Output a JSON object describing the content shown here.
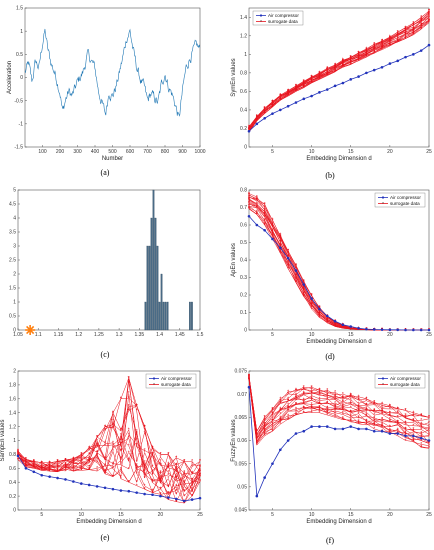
{
  "figure": {
    "title": ""
  },
  "colors": {
    "surrogate": "#e8141e",
    "original": "#2233bb",
    "signal": "#1f77b4",
    "hist": "#4a6b86",
    "star": "#ff7f0e"
  },
  "chart_data": [
    {
      "id": "a",
      "panel_label": "(a)",
      "type": "line",
      "xlabel": "Number",
      "ylabel": "Acceleration",
      "xlim": [
        0,
        1000
      ],
      "ylim": [
        -1.5,
        1.5
      ],
      "xticks": [
        100,
        200,
        300,
        400,
        500,
        600,
        700,
        800,
        900,
        1000
      ],
      "yticks": [
        -1.5,
        -1,
        -0.5,
        0,
        0.5,
        1,
        1.5
      ],
      "series": [
        {
          "keypoints_x": [
            0,
            20,
            40,
            60,
            80,
            100,
            115,
            130,
            150,
            175,
            200,
            215,
            230,
            250,
            270,
            300,
            330,
            360,
            380,
            400,
            420,
            440,
            460,
            480,
            500,
            520,
            540,
            560,
            580,
            600,
            620,
            640,
            660,
            680,
            700,
            720,
            740,
            760,
            780,
            800,
            820,
            840,
            860,
            880,
            900,
            920,
            940,
            960,
            980,
            1000
          ],
          "keypoints_y": [
            0.1,
            0.3,
            -0.1,
            0.35,
            0.2,
            0.75,
            1.0,
            0.6,
            0.3,
            0.05,
            -0.3,
            -0.75,
            -0.5,
            -0.3,
            -0.4,
            -0.1,
            0.1,
            0.5,
            0.35,
            0.2,
            -0.3,
            -0.55,
            -0.8,
            -0.3,
            -0.4,
            -0.2,
            0.1,
            0.45,
            0.85,
            1.0,
            0.55,
            0.2,
            -0.05,
            -0.2,
            -0.5,
            -0.35,
            -0.45,
            -0.55,
            -0.15,
            0.1,
            -0.2,
            -0.35,
            -0.6,
            -0.9,
            -0.3,
            0.2,
            0.4,
            0.55,
            0.7,
            0.6
          ]
        }
      ]
    },
    {
      "id": "b",
      "panel_label": "(b)",
      "type": "line",
      "xlabel": "Embedding Dimension d",
      "ylabel": "SymEn values",
      "xlim": [
        2,
        25
      ],
      "ylim": [
        0,
        1.5
      ],
      "xticks": [
        5,
        10,
        15,
        20,
        25
      ],
      "yticks": [
        0,
        0.2,
        0.4,
        0.6,
        0.8,
        1,
        1.2,
        1.4
      ],
      "legend": [
        "Air compressor",
        "surrogate data"
      ],
      "legend_position": "top-left",
      "series": [
        {
          "name": "Air compressor",
          "x": [
            2,
            3,
            4,
            5,
            6,
            7,
            8,
            9,
            10,
            11,
            12,
            13,
            14,
            15,
            16,
            17,
            18,
            19,
            20,
            21,
            22,
            23,
            24,
            25
          ],
          "values": [
            0.17,
            0.25,
            0.31,
            0.36,
            0.4,
            0.44,
            0.48,
            0.52,
            0.55,
            0.59,
            0.62,
            0.66,
            0.69,
            0.73,
            0.76,
            0.8,
            0.83,
            0.86,
            0.9,
            0.93,
            0.97,
            1.0,
            1.04,
            1.1
          ]
        },
        {
          "name": "surrogate data",
          "x_range": [
            2,
            25
          ],
          "ensemble_low": [
            0.16,
            0.28,
            0.36,
            0.43,
            0.5,
            0.55,
            0.6,
            0.64,
            0.69,
            0.73,
            0.77,
            0.81,
            0.86,
            0.89,
            0.93,
            0.97,
            1.01,
            1.05,
            1.09,
            1.13,
            1.17,
            1.21,
            1.27,
            1.34
          ],
          "ensemble_high": [
            0.22,
            0.33,
            0.42,
            0.49,
            0.56,
            0.61,
            0.66,
            0.71,
            0.76,
            0.8,
            0.85,
            0.89,
            0.94,
            0.98,
            1.02,
            1.06,
            1.11,
            1.15,
            1.19,
            1.24,
            1.29,
            1.34,
            1.4,
            1.47
          ],
          "count": 20
        }
      ]
    },
    {
      "id": "c",
      "panel_label": "(c)",
      "type": "bar",
      "xlim": [
        1.05,
        1.5
      ],
      "ylim": [
        0,
        5
      ],
      "xticks": [
        1.05,
        1.1,
        1.15,
        1.2,
        1.25,
        1.3,
        1.35,
        1.4,
        1.45,
        1.5
      ],
      "yticks": [
        0,
        0.5,
        1,
        1.5,
        2,
        2.5,
        3,
        3.5,
        4,
        4.5,
        5
      ],
      "bins": [
        1.365,
        1.37,
        1.375,
        1.38,
        1.385,
        1.39,
        1.395,
        1.4,
        1.405,
        1.41,
        1.415,
        1.42,
        1.475,
        1.48
      ],
      "counts": [
        1,
        3,
        3,
        4,
        5,
        4,
        3,
        1,
        2,
        1,
        1,
        1,
        1,
        1
      ],
      "original_value": 1.08
    },
    {
      "id": "d",
      "panel_label": "(d)",
      "type": "line",
      "xlabel": "Embedding Dimension d",
      "ylabel": "ApEn values",
      "xlim": [
        2,
        25
      ],
      "ylim": [
        0,
        0.8
      ],
      "xticks": [
        5,
        10,
        15,
        20,
        25
      ],
      "yticks": [
        0,
        0.1,
        0.2,
        0.3,
        0.4,
        0.5,
        0.6,
        0.7,
        0.8
      ],
      "legend": [
        "Air compressor",
        "surrogate data"
      ],
      "legend_position": "top-right",
      "series": [
        {
          "name": "Air compressor",
          "x": [
            2,
            3,
            4,
            5,
            6,
            7,
            8,
            9,
            10,
            11,
            12,
            13,
            14,
            15,
            16,
            17,
            18,
            19,
            20,
            21,
            22,
            23,
            24,
            25
          ],
          "values": [
            0.65,
            0.6,
            0.57,
            0.52,
            0.47,
            0.41,
            0.34,
            0.26,
            0.18,
            0.12,
            0.08,
            0.05,
            0.03,
            0.02,
            0.01,
            0.005,
            0.003,
            0.002,
            0.001,
            0.001,
            0,
            0,
            0,
            0
          ]
        },
        {
          "name": "surrogate data",
          "x_range": [
            2,
            25
          ],
          "ensemble_low": [
            0.69,
            0.66,
            0.6,
            0.52,
            0.44,
            0.35,
            0.27,
            0.19,
            0.12,
            0.07,
            0.04,
            0.02,
            0.01,
            0.005,
            0.002,
            0.001,
            0,
            0,
            0,
            0,
            0,
            0,
            0,
            0
          ],
          "ensemble_high": [
            0.78,
            0.76,
            0.72,
            0.63,
            0.55,
            0.46,
            0.37,
            0.28,
            0.2,
            0.13,
            0.08,
            0.05,
            0.03,
            0.015,
            0.008,
            0.004,
            0.002,
            0.001,
            0,
            0,
            0,
            0,
            0,
            0
          ],
          "count": 20
        }
      ]
    },
    {
      "id": "e",
      "panel_label": "(e)",
      "type": "line",
      "xlabel": "Embedding Dimension d",
      "ylabel": "SampEn values",
      "xlim": [
        2,
        25
      ],
      "ylim": [
        0,
        2
      ],
      "xticks": [
        5,
        10,
        15,
        20,
        25
      ],
      "yticks": [
        0,
        0.2,
        0.4,
        0.6,
        0.8,
        1,
        1.2,
        1.4,
        1.6,
        1.8,
        2
      ],
      "legend": [
        "Air compressor",
        "surrogate data"
      ],
      "legend_position": "top-right",
      "series": [
        {
          "name": "Air compressor",
          "x": [
            2,
            3,
            4,
            5,
            6,
            7,
            8,
            9,
            10,
            11,
            12,
            13,
            14,
            15,
            16,
            17,
            18,
            19,
            20,
            21,
            22,
            23,
            24,
            25
          ],
          "values": [
            0.78,
            0.6,
            0.55,
            0.5,
            0.48,
            0.46,
            0.44,
            0.41,
            0.38,
            0.36,
            0.34,
            0.32,
            0.3,
            0.28,
            0.27,
            0.25,
            0.23,
            0.22,
            0.2,
            0.18,
            0.16,
            0.13,
            0.15,
            0.17
          ]
        },
        {
          "name": "surrogate data",
          "x_range": [
            2,
            25
          ],
          "ensemble_low": [
            0.72,
            0.62,
            0.6,
            0.57,
            0.56,
            0.55,
            0.55,
            0.56,
            0.57,
            0.58,
            0.56,
            0.52,
            0.48,
            0.45,
            0.4,
            0.35,
            0.3,
            0.25,
            0.2,
            0.15,
            0.12,
            0.1,
            0.2,
            0.4
          ],
          "ensemble_high": [
            0.85,
            0.73,
            0.7,
            0.68,
            0.68,
            0.7,
            0.72,
            0.74,
            0.8,
            0.9,
            1.05,
            1.2,
            1.4,
            1.6,
            1.9,
            1.5,
            1.2,
            0.9,
            0.8,
            0.8,
            0.75,
            0.7,
            0.7,
            0.7
          ],
          "count": 20
        }
      ]
    },
    {
      "id": "f",
      "panel_label": "(f)",
      "type": "line",
      "xlabel": "Embedding Dimension d",
      "ylabel": "FuzzyEn values",
      "xlim": [
        2,
        25
      ],
      "ylim": [
        0.045,
        0.075
      ],
      "xticks": [
        5,
        10,
        15,
        20,
        25
      ],
      "yticks": [
        0.045,
        0.05,
        0.055,
        0.06,
        0.065,
        0.07,
        0.075
      ],
      "legend": [
        "Air compressor",
        "surrogate data"
      ],
      "legend_position": "top-right",
      "series": [
        {
          "name": "Air compressor",
          "x": [
            2,
            3,
            4,
            5,
            6,
            7,
            8,
            9,
            10,
            11,
            12,
            13,
            14,
            15,
            16,
            17,
            18,
            19,
            20,
            21,
            22,
            23,
            24,
            25
          ],
          "values": [
            0.0715,
            0.048,
            0.052,
            0.055,
            0.058,
            0.06,
            0.0615,
            0.062,
            0.063,
            0.063,
            0.063,
            0.0625,
            0.0625,
            0.063,
            0.0625,
            0.0625,
            0.062,
            0.062,
            0.0615,
            0.0615,
            0.061,
            0.061,
            0.0605,
            0.06
          ]
        },
        {
          "name": "surrogate data",
          "x_range": [
            2,
            25
          ],
          "ensemble_low": [
            0.073,
            0.059,
            0.061,
            0.062,
            0.0635,
            0.0645,
            0.0655,
            0.066,
            0.066,
            0.066,
            0.0655,
            0.065,
            0.0645,
            0.064,
            0.0635,
            0.063,
            0.0625,
            0.062,
            0.0615,
            0.061,
            0.06,
            0.059,
            0.0585,
            0.058
          ],
          "ensemble_high": [
            0.074,
            0.062,
            0.065,
            0.067,
            0.069,
            0.0705,
            0.071,
            0.0715,
            0.0715,
            0.071,
            0.071,
            0.0705,
            0.07,
            0.07,
            0.0695,
            0.069,
            0.0685,
            0.068,
            0.0675,
            0.067,
            0.0665,
            0.066,
            0.0655,
            0.065
          ],
          "count": 20
        }
      ]
    }
  ]
}
